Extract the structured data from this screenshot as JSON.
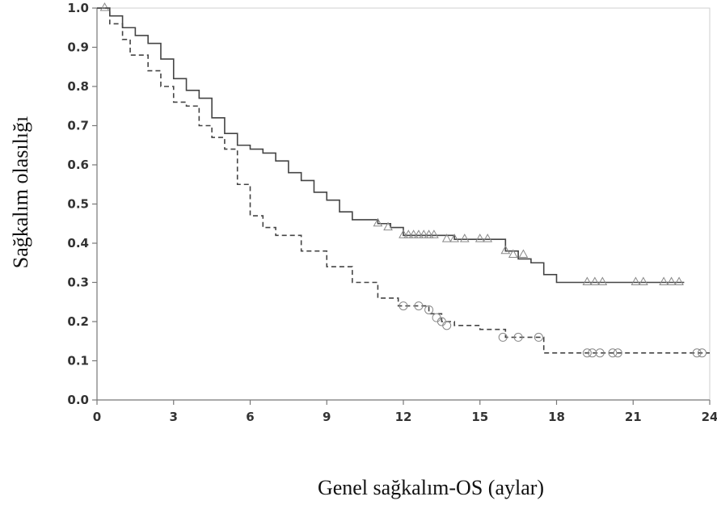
{
  "chart_data": {
    "type": "line",
    "xlabel": "Genel sağkalım-OS (aylar)",
    "ylabel": "Sağkalım olasılığı",
    "xlim": [
      0,
      24
    ],
    "ylim": [
      0,
      1.0
    ],
    "x_ticks": [
      "0",
      "3",
      "6",
      "9",
      "12",
      "15",
      "18",
      "21",
      "24"
    ],
    "y_ticks": [
      "0.0",
      "0.1",
      "0.2",
      "0.3",
      "0.4",
      "0.5",
      "0.6",
      "0.7",
      "0.8",
      "0.9",
      "1.0"
    ],
    "grid": false,
    "series": [
      {
        "line_style": "solid",
        "censor_marker": "triangle",
        "color": "#444444",
        "x": [
          0,
          0.5,
          1.0,
          1.5,
          2.0,
          2.5,
          3.0,
          3.5,
          4.0,
          4.5,
          5.0,
          5.5,
          6.0,
          6.5,
          7.0,
          7.5,
          8.0,
          8.5,
          9.0,
          9.5,
          10.0,
          11.0,
          11.5,
          12.0,
          13.0,
          14.0,
          15.0,
          16.0,
          16.5,
          17.0,
          17.5,
          18.0,
          23.0
        ],
        "y": [
          1.0,
          0.98,
          0.95,
          0.93,
          0.91,
          0.87,
          0.82,
          0.79,
          0.77,
          0.72,
          0.68,
          0.65,
          0.64,
          0.63,
          0.61,
          0.58,
          0.56,
          0.53,
          0.51,
          0.48,
          0.46,
          0.45,
          0.44,
          0.42,
          0.42,
          0.41,
          0.41,
          0.38,
          0.36,
          0.35,
          0.32,
          0.3,
          0.3
        ],
        "censored_x": [
          0.3,
          11.0,
          11.4,
          12.0,
          12.2,
          12.4,
          12.6,
          12.8,
          13.0,
          13.2,
          13.7,
          14.0,
          14.4,
          15.0,
          15.3,
          16.0,
          16.3,
          16.7,
          19.2,
          19.5,
          19.8,
          21.1,
          21.4,
          22.2,
          22.5,
          22.8
        ],
        "censored_y": [
          1.0,
          0.45,
          0.44,
          0.42,
          0.42,
          0.42,
          0.42,
          0.42,
          0.42,
          0.42,
          0.41,
          0.41,
          0.41,
          0.41,
          0.41,
          0.38,
          0.37,
          0.37,
          0.3,
          0.3,
          0.3,
          0.3,
          0.3,
          0.3,
          0.3,
          0.3
        ]
      },
      {
        "line_style": "dashed",
        "censor_marker": "circle",
        "color": "#444444",
        "x": [
          0,
          0.5,
          1.0,
          1.3,
          2.0,
          2.5,
          3.0,
          3.5,
          4.0,
          4.5,
          5.0,
          5.5,
          6.0,
          6.5,
          7.0,
          8.0,
          9.0,
          10.0,
          11.0,
          11.8,
          13.0,
          13.5,
          14.0,
          15.0,
          16.0,
          17.0,
          17.5,
          24.0
        ],
        "y": [
          1.0,
          0.96,
          0.92,
          0.88,
          0.84,
          0.8,
          0.76,
          0.75,
          0.7,
          0.67,
          0.64,
          0.55,
          0.47,
          0.44,
          0.42,
          0.38,
          0.34,
          0.3,
          0.26,
          0.24,
          0.22,
          0.2,
          0.19,
          0.18,
          0.16,
          0.16,
          0.12,
          0.12
        ],
        "censored_x": [
          12.0,
          12.6,
          13.0,
          13.3,
          13.5,
          13.7,
          15.9,
          16.5,
          17.3,
          19.2,
          19.4,
          19.7,
          20.2,
          20.4,
          23.5,
          23.7
        ],
        "censored_y": [
          0.24,
          0.24,
          0.23,
          0.21,
          0.2,
          0.19,
          0.16,
          0.16,
          0.16,
          0.12,
          0.12,
          0.12,
          0.12,
          0.12,
          0.12,
          0.12
        ]
      }
    ]
  }
}
